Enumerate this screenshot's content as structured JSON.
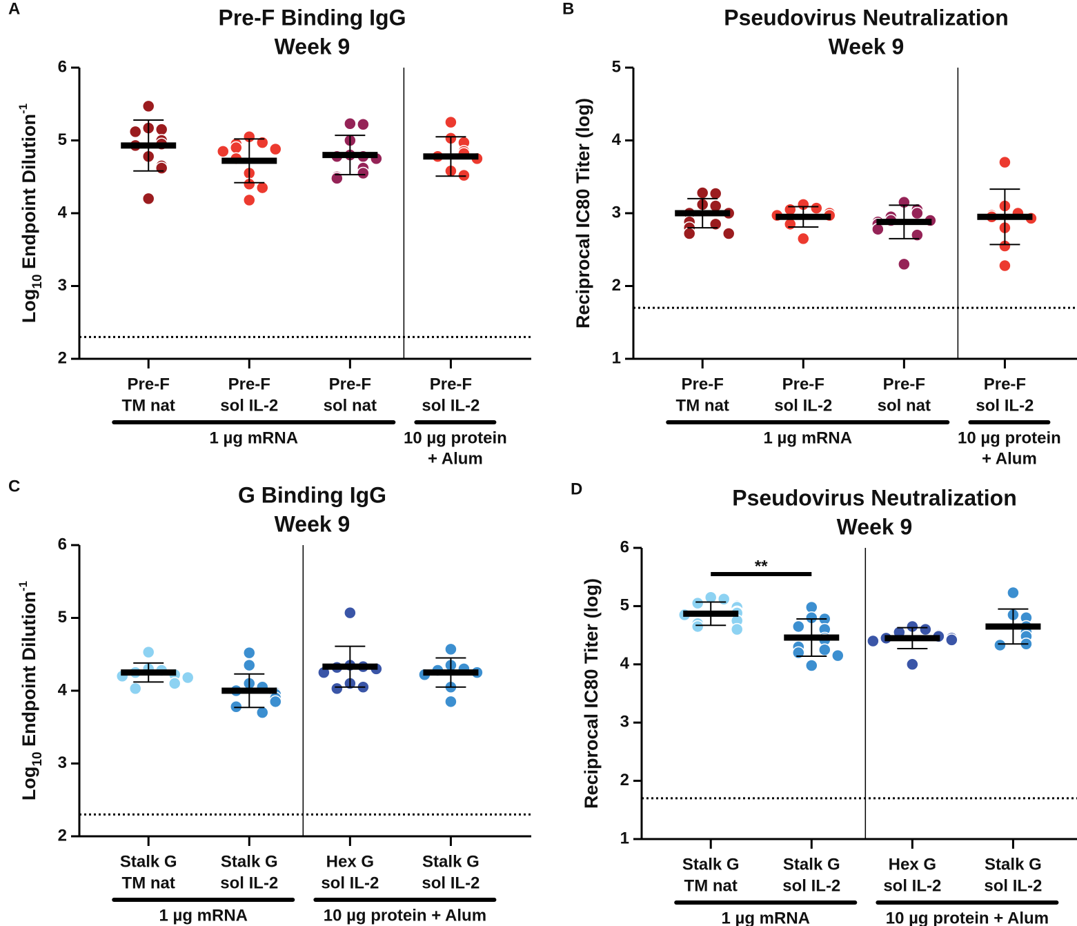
{
  "chart_data": [
    {
      "type": "strip",
      "panel": "A",
      "title": "Pre-F Binding IgG",
      "subtitle": "Week 9",
      "ylabel": {
        "base": "Log",
        "sub": "10",
        "rest": " Endpoint Dilution",
        "sup": "-1"
      },
      "ylim": [
        2,
        6
      ],
      "yticks": [
        2,
        3,
        4,
        5,
        6
      ],
      "reference_line": 2.3,
      "categories": [
        [
          "Pre-F",
          "TM nat"
        ],
        [
          "Pre-F",
          "sol IL-2"
        ],
        [
          "Pre-F",
          "sol nat"
        ],
        [
          "Pre-F",
          "sol IL-2"
        ]
      ],
      "groups": [
        {
          "label": [
            "1 µg mRNA"
          ],
          "span": 3
        },
        {
          "label": [
            "10 µg protein",
            "+ Alum"
          ],
          "span": 1
        }
      ],
      "series": [
        {
          "color": "#9b1c1f",
          "values": [
            5.47,
            5.17,
            5.15,
            5.12,
            5.0,
            4.95,
            4.93,
            4.78,
            4.65,
            4.62,
            4.2
          ],
          "mean": 4.93,
          "sd": 0.35
        },
        {
          "color": "#ec3a2f",
          "values": [
            5.05,
            4.97,
            4.95,
            4.9,
            4.88,
            4.85,
            4.75,
            4.55,
            4.4,
            4.35,
            4.18
          ],
          "mean": 4.72,
          "sd": 0.3
        },
        {
          "color": "#952357",
          "values": [
            5.23,
            5.22,
            5.0,
            4.8,
            4.78,
            4.78,
            4.75,
            4.62,
            4.55,
            4.5,
            4.48
          ],
          "mean": 4.8,
          "sd": 0.27
        },
        {
          "color": "#ec3a2f",
          "values": [
            5.25,
            5.03,
            4.97,
            4.85,
            4.82,
            4.78,
            4.75,
            4.58,
            4.52
          ],
          "mean": 4.78,
          "sd": 0.27
        }
      ]
    },
    {
      "type": "strip",
      "panel": "B",
      "title": "Pseudovirus Neutralization",
      "subtitle": "Week 9",
      "ylabel": "Reciprocal IC80 Titer (log)",
      "ylim": [
        1,
        5
      ],
      "yticks": [
        1,
        2,
        3,
        4,
        5
      ],
      "reference_line": 1.7,
      "categories": [
        [
          "Pre-F",
          "TM nat"
        ],
        [
          "Pre-F",
          "sol IL-2"
        ],
        [
          "Pre-F",
          "sol nat"
        ],
        [
          "Pre-F",
          "sol IL-2"
        ]
      ],
      "groups": [
        {
          "label": [
            "1 µg mRNA"
          ],
          "span": 3
        },
        {
          "label": [
            "10 µg protein",
            "+ Alum"
          ],
          "span": 1
        }
      ],
      "series": [
        {
          "color": "#9b1c1f",
          "values": [
            3.28,
            3.27,
            3.12,
            3.1,
            3.0,
            3.0,
            2.88,
            2.85,
            2.8,
            2.72,
            2.72
          ],
          "mean": 3.0,
          "sd": 0.2
        },
        {
          "color": "#ec3a2f",
          "values": [
            3.12,
            3.07,
            3.05,
            3.0,
            2.97,
            2.97,
            2.85,
            2.65
          ],
          "mean": 2.95,
          "sd": 0.14
        },
        {
          "color": "#952357",
          "values": [
            3.15,
            3.05,
            3.0,
            2.95,
            2.9,
            2.9,
            2.88,
            2.85,
            2.78,
            2.7,
            2.3
          ],
          "mean": 2.88,
          "sd": 0.23
        },
        {
          "color": "#ec3a2f",
          "values": [
            3.7,
            3.1,
            3.0,
            2.97,
            2.95,
            2.93,
            2.8,
            2.55,
            2.28
          ],
          "mean": 2.95,
          "sd": 0.38
        }
      ]
    },
    {
      "type": "strip",
      "panel": "C",
      "title": "G Binding IgG",
      "subtitle": "Week 9",
      "ylabel": {
        "base": "Log",
        "sub": "10",
        "rest": " Endpoint Dilution",
        "sup": "-1"
      },
      "ylim": [
        2,
        6
      ],
      "yticks": [
        2,
        3,
        4,
        5,
        6
      ],
      "reference_line": 2.3,
      "categories": [
        [
          "Stalk G",
          "TM nat"
        ],
        [
          "Stalk G",
          "sol IL-2"
        ],
        [
          "Hex G",
          "sol IL-2"
        ],
        [
          "Stalk G",
          "sol IL-2"
        ]
      ],
      "groups": [
        {
          "label": [
            "1 µg mRNA"
          ],
          "span": 2
        },
        {
          "label": [
            "10 µg protein + Alum"
          ],
          "span": 2
        }
      ],
      "series": [
        {
          "color": "#8dd2f2",
          "values": [
            4.53,
            4.3,
            4.28,
            4.25,
            4.22,
            4.2,
            4.18,
            4.1,
            4.05,
            4.03
          ],
          "mean": 4.25,
          "sd": 0.13
        },
        {
          "color": "#3c8fd0",
          "values": [
            4.52,
            4.35,
            4.1,
            4.05,
            4.0,
            3.97,
            3.95,
            3.9,
            3.85,
            3.78,
            3.7
          ],
          "mean": 4.0,
          "sd": 0.23
        },
        {
          "color": "#3a55a7",
          "values": [
            5.07,
            4.35,
            4.33,
            4.32,
            4.3,
            4.25,
            4.1,
            4.05,
            4.03
          ],
          "mean": 4.33,
          "sd": 0.28
        },
        {
          "color": "#3c8fd0",
          "values": [
            4.57,
            4.35,
            4.3,
            4.28,
            4.25,
            4.22,
            4.05,
            3.85
          ],
          "mean": 4.25,
          "sd": 0.2
        }
      ]
    },
    {
      "type": "strip",
      "panel": "D",
      "title": "Pseudovirus Neutralization",
      "subtitle": "Week 9",
      "ylabel": "Reciprocal IC80 Titer (log)",
      "ylim": [
        1,
        6
      ],
      "yticks": [
        1,
        2,
        3,
        4,
        5,
        6
      ],
      "reference_line": 1.7,
      "categories": [
        [
          "Stalk G",
          "TM nat"
        ],
        [
          "Stalk G",
          "sol IL-2"
        ],
        [
          "Hex G",
          "sol IL-2"
        ],
        [
          "Stalk G",
          "sol IL-2"
        ]
      ],
      "groups": [
        {
          "label": [
            "1 µg mRNA"
          ],
          "span": 2
        },
        {
          "label": [
            "10 µg protein + Alum"
          ],
          "span": 2
        }
      ],
      "annotations": [
        {
          "text": "**",
          "from": 0,
          "to": 1,
          "y": 5.55
        }
      ],
      "series": [
        {
          "color": "#8dd2f2",
          "values": [
            5.15,
            5.12,
            5.05,
            5.0,
            4.98,
            4.9,
            4.88,
            4.85,
            4.75,
            4.7,
            4.65,
            4.6
          ],
          "mean": 4.87,
          "sd": 0.2
        },
        {
          "color": "#3c8fd0",
          "values": [
            4.98,
            4.8,
            4.78,
            4.65,
            4.6,
            4.45,
            4.42,
            4.3,
            4.25,
            4.2,
            4.15,
            3.98
          ],
          "mean": 4.46,
          "sd": 0.32
        },
        {
          "color": "#3a55a7",
          "values": [
            4.65,
            4.6,
            4.55,
            4.5,
            4.48,
            4.45,
            4.45,
            4.42,
            4.4,
            4.0
          ],
          "mean": 4.45,
          "sd": 0.18
        },
        {
          "color": "#3c8fd0",
          "values": [
            5.23,
            4.85,
            4.8,
            4.65,
            4.55,
            4.48,
            4.35,
            4.33
          ],
          "mean": 4.65,
          "sd": 0.3
        }
      ]
    }
  ]
}
